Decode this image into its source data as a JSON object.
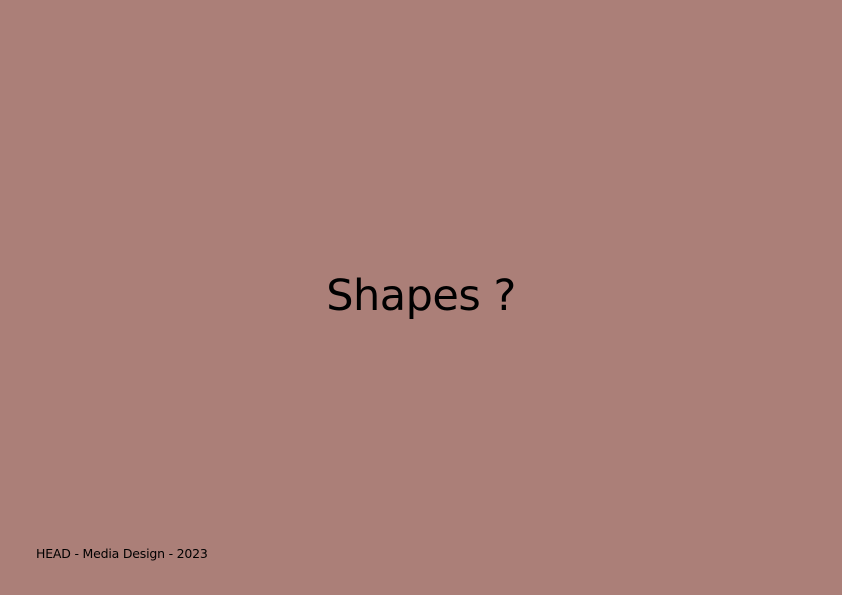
{
  "slide": {
    "background_color": "#ab7f78",
    "title": "Shapes ?",
    "footer": "HEAD - Media Design - 2023"
  }
}
